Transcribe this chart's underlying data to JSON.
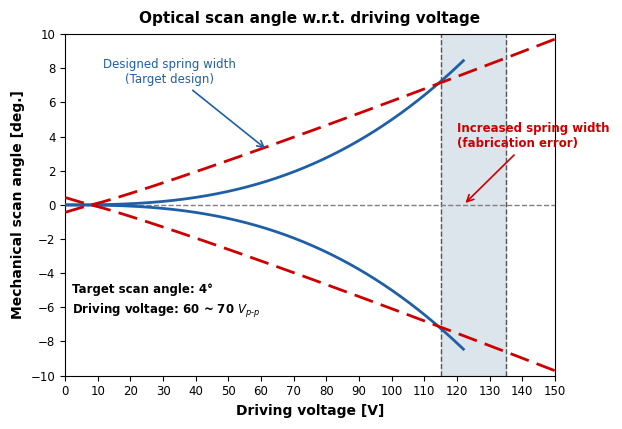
{
  "title": "Optical scan angle w.r.t. driving voltage",
  "xlabel": "Driving voltage [V]",
  "ylabel": "Mechanical scan angle [deg.]",
  "xlim": [
    0,
    150
  ],
  "ylim": [
    -10,
    10
  ],
  "xticks": [
    0,
    10,
    20,
    30,
    40,
    50,
    60,
    70,
    80,
    90,
    100,
    110,
    120,
    130,
    140,
    150
  ],
  "yticks": [
    -10,
    -8,
    -6,
    -4,
    -2,
    0,
    2,
    4,
    6,
    8,
    10
  ],
  "blue_color": "#1f5fa6",
  "red_color": "#cc0000",
  "shade_color": "#b8cdd8",
  "shade_alpha": 0.5,
  "shade_xmin": 115,
  "shade_xmax": 135,
  "dashed_line_x1": 115,
  "dashed_line_x2": 135,
  "annotation_text_blue": "Designed spring width\n(Target design)",
  "annotation_text_red": "Increased spring width\n(fabrication error)",
  "info_text_line1": "Target scan angle: 4°",
  "info_text_line2": "Driving voltage: 60 ~ 70 V",
  "blue_end_V": 122,
  "n_blue": 2.65,
  "blue_scale": 8.45,
  "n_red": 1.08,
  "red_scale": 0.046,
  "red_v0": 8.0
}
